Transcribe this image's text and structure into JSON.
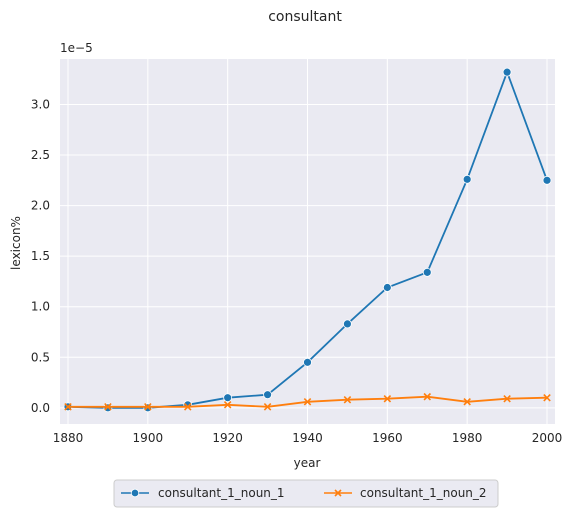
{
  "chart_data": {
    "type": "line",
    "title": "consultant",
    "xlabel": "year",
    "ylabel": "lexicon%",
    "offset_label": "1e−5",
    "x": [
      1880,
      1890,
      1900,
      1910,
      1920,
      1930,
      1940,
      1950,
      1960,
      1970,
      1980,
      1990,
      2000
    ],
    "xlim": [
      1878,
      2002
    ],
    "ylim": [
      -0.16,
      3.45
    ],
    "xticks": [
      1880,
      1900,
      1920,
      1940,
      1960,
      1980,
      2000
    ],
    "xtick_labels": [
      "1880",
      "1900",
      "1920",
      "1940",
      "1960",
      "1980",
      "2000"
    ],
    "yticks": [
      0.0,
      0.5,
      1.0,
      1.5,
      2.0,
      2.5,
      3.0
    ],
    "ytick_labels": [
      "0.0",
      "0.5",
      "1.0",
      "1.5",
      "2.0",
      "2.5",
      "3.0"
    ],
    "grid": true,
    "legend_position": "bottom-center",
    "series": [
      {
        "name": "consultant_1_noun_1",
        "color": "#1f77b4",
        "marker": "circle",
        "values": [
          0.01,
          0.0,
          0.0,
          0.03,
          0.1,
          0.13,
          0.45,
          0.83,
          1.19,
          1.34,
          2.26,
          3.32,
          2.25
        ]
      },
      {
        "name": "consultant_1_noun_2",
        "color": "#ff7f0e",
        "marker": "x",
        "values": [
          0.01,
          0.01,
          0.01,
          0.01,
          0.03,
          0.01,
          0.06,
          0.08,
          0.09,
          0.11,
          0.06,
          0.09,
          0.1
        ]
      }
    ]
  }
}
